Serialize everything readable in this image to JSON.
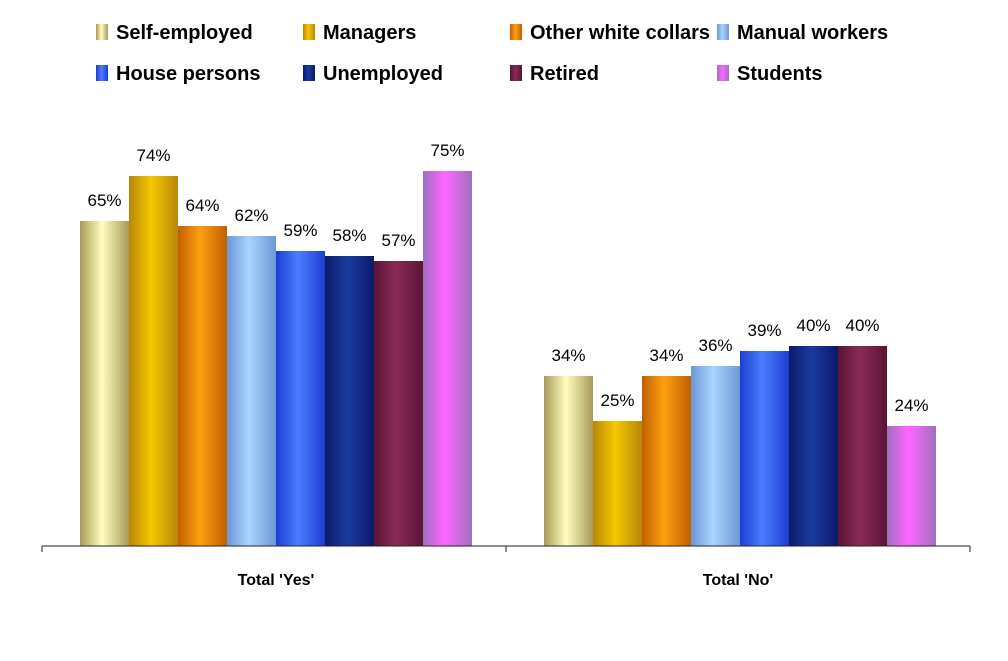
{
  "chart_data": {
    "type": "bar",
    "categories": [
      "Total 'Yes'",
      "Total 'No'"
    ],
    "series": [
      {
        "name": "Self-employed",
        "values": [
          65,
          34
        ],
        "color_light": "#ffffbf",
        "color_dark": "#a89a58"
      },
      {
        "name": "Managers",
        "values": [
          74,
          25
        ],
        "color_light": "#f5c800",
        "color_dark": "#b8860b"
      },
      {
        "name": "Other white collars",
        "values": [
          64,
          34
        ],
        "color_light": "#ffa010",
        "color_dark": "#c06000"
      },
      {
        "name": "Manual workers",
        "values": [
          62,
          36
        ],
        "color_light": "#a9d4ff",
        "color_dark": "#6a9ad6"
      },
      {
        "name": "House persons",
        "values": [
          59,
          39
        ],
        "color_light": "#4c7dff",
        "color_dark": "#1a3fd0"
      },
      {
        "name": "Unemployed",
        "values": [
          58,
          40
        ],
        "color_light": "#1b3aa0",
        "color_dark": "#0a1a6a"
      },
      {
        "name": "Retired",
        "values": [
          57,
          40
        ],
        "color_light": "#8a2a55",
        "color_dark": "#5a1535"
      },
      {
        "name": "Students",
        "values": [
          75,
          24
        ],
        "color_light": "#ff66ff",
        "color_dark": "#a070c0"
      }
    ],
    "value_suffix": "%",
    "ylim": [
      0,
      90
    ],
    "grid": false,
    "legend_position": "top",
    "title": "",
    "xlabel": "",
    "ylabel": ""
  }
}
